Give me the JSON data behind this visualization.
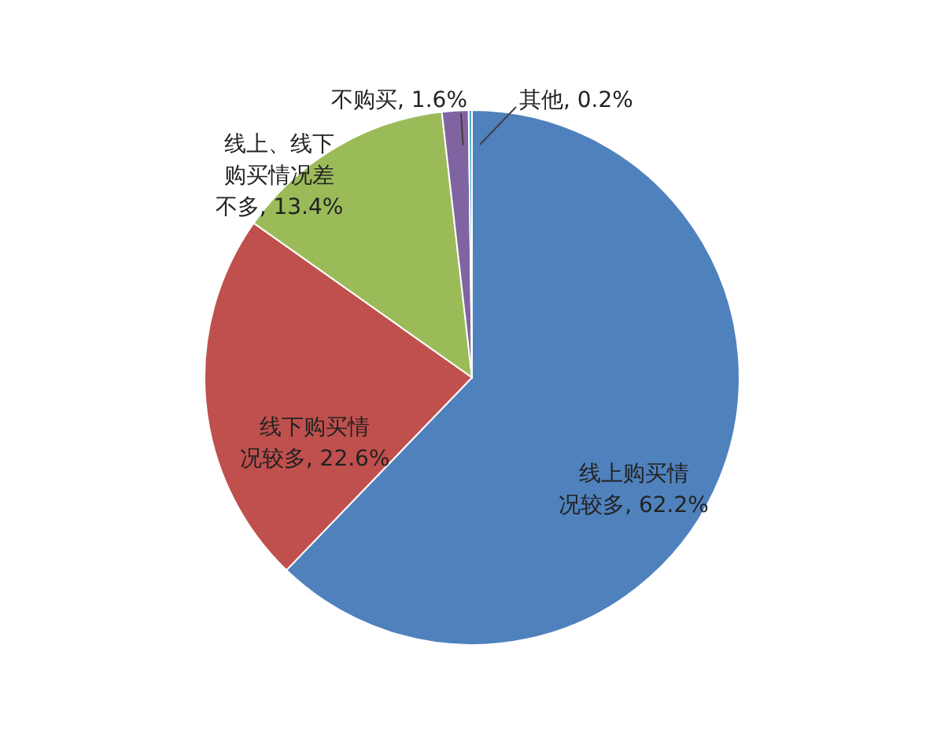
{
  "chart_data": {
    "type": "pie",
    "categories": [
      "线上购买情况较多",
      "线下购买情况较多",
      "线上、线下购买情况差不多",
      "不购买",
      "其他"
    ],
    "values": [
      62.2,
      22.6,
      13.4,
      1.6,
      0.2
    ],
    "value_labels": [
      "62.2%",
      "22.6%",
      "13.4%",
      "1.6%",
      "0.2%"
    ],
    "colors": [
      "#4f81bd",
      "#c0504d",
      "#9bbb59",
      "#8064a2",
      "#4bacc6"
    ]
  }
}
